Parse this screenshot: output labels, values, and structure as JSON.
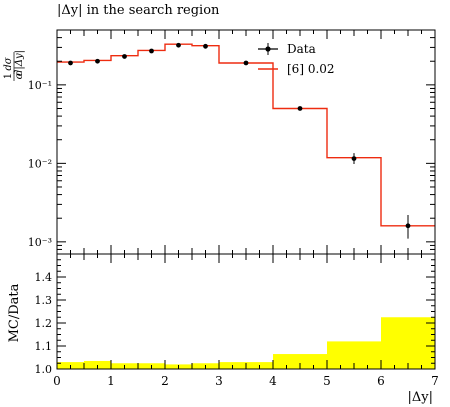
{
  "title": "|Δy| in the search region",
  "chart_data": [
    {
      "type": "line",
      "title": "|Δy| in the search region",
      "xlabel": "|Δy|",
      "ylabel": "1/σ dσ/d|Δy|",
      "yscale": "log",
      "xlim": [
        0,
        7
      ],
      "ylim": [
        0.0007,
        0.5
      ],
      "x_ticks": [
        "0",
        "1",
        "2",
        "3",
        "4",
        "5",
        "6",
        "7"
      ],
      "y_ticks": [
        "10⁻³",
        "10⁻²",
        "10⁻¹"
      ],
      "legend_position": "top-right",
      "bin_edges": [
        0,
        0.5,
        1,
        1.5,
        2,
        2.5,
        3,
        4,
        5,
        6,
        7
      ],
      "series": [
        {
          "name": "Data",
          "kind": "points",
          "color": "#000000",
          "x": [
            0.25,
            0.75,
            1.25,
            1.75,
            2.25,
            2.75,
            3.5,
            4.5,
            5.5,
            6.5
          ],
          "y": [
            0.19,
            0.2,
            0.23,
            0.27,
            0.32,
            0.31,
            0.19,
            0.05,
            0.0115,
            0.0016
          ],
          "yerr_low": [
            0.18,
            0.19,
            0.22,
            0.26,
            0.31,
            0.3,
            0.18,
            0.048,
            0.0098,
            0.0011
          ],
          "yerr_high": [
            0.2,
            0.21,
            0.24,
            0.28,
            0.33,
            0.32,
            0.2,
            0.052,
            0.0135,
            0.0022
          ]
        },
        {
          "name": "[6] 0.02",
          "kind": "step",
          "color": "#ee2c10",
          "values": [
            0.195,
            0.205,
            0.235,
            0.275,
            0.33,
            0.315,
            0.19,
            0.05,
            0.0118,
            0.0016
          ]
        }
      ]
    },
    {
      "type": "area",
      "xlabel": "|Δy|",
      "ylabel": "MC/Data",
      "xlim": [
        0,
        7
      ],
      "ylim": [
        1.0,
        1.5
      ],
      "x_ticks": [
        "0",
        "1",
        "2",
        "3",
        "4",
        "5",
        "6",
        "7"
      ],
      "y_ticks": [
        "1.0",
        "1.1",
        "1.2",
        "1.3",
        "1.4"
      ],
      "bin_edges": [
        0,
        0.5,
        1,
        1.5,
        2,
        2.5,
        3,
        4,
        5,
        6,
        7
      ],
      "color": "#ffff00",
      "values": [
        1.03,
        1.035,
        1.025,
        1.025,
        1.02,
        1.025,
        1.03,
        1.065,
        1.12,
        1.225
      ]
    }
  ]
}
